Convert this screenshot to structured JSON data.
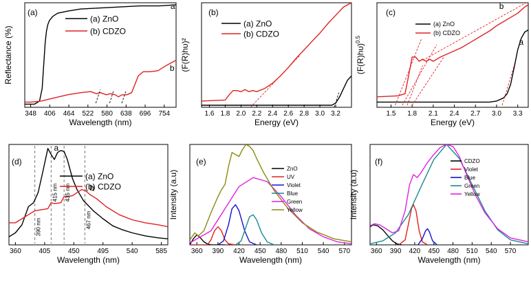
{
  "chart_data": [
    {
      "panel": "(a)",
      "type": "line",
      "xlabel": "Wavelength (nm)",
      "ylabel": "Reflectance (%)",
      "xlim": [
        330,
        790
      ],
      "ylim": [
        0,
        100
      ],
      "xticks": [
        "348",
        "406",
        "464",
        "522",
        "580",
        "638",
        "696",
        "754"
      ],
      "xtick_values": [
        348,
        406,
        464,
        522,
        580,
        638,
        696,
        754
      ],
      "legend": [
        {
          "label": "(a) ZnO",
          "color": "#000000"
        },
        {
          "label": "(b) CDZO",
          "color": "#e02020"
        }
      ],
      "series": [
        {
          "name": "(a) ZnO",
          "color": "#000000",
          "x": [
            330,
            360,
            375,
            383,
            388,
            392,
            396,
            400,
            405,
            415,
            430,
            460,
            500,
            560,
            620,
            680,
            740,
            790
          ],
          "y": [
            3,
            3,
            6,
            18,
            42,
            62,
            73,
            79,
            83,
            87,
            90,
            92,
            94,
            95,
            96,
            97,
            97,
            98
          ]
        },
        {
          "name": "(b) CDZO",
          "color": "#e02020",
          "x": [
            330,
            348,
            380,
            420,
            460,
            500,
            530,
            548,
            560,
            578,
            590,
            605,
            615,
            625,
            640,
            655,
            665,
            675,
            690,
            710,
            735,
            760,
            778,
            790
          ],
          "y": [
            5,
            5,
            6,
            9,
            12,
            14,
            15,
            13,
            14,
            12,
            13,
            12,
            10,
            12,
            12,
            14,
            22,
            30,
            34,
            34,
            35,
            40,
            43,
            45
          ]
        }
      ],
      "curve_labels": [
        {
          "text": "a",
          "x": 780,
          "y": 94
        },
        {
          "text": "b",
          "x": 778,
          "y": 35
        }
      ],
      "dashed_lines": [
        [
          [
            546,
            4
          ],
          [
            560,
            17
          ]
        ],
        [
          [
            588,
            4
          ],
          [
            600,
            16
          ]
        ],
        [
          [
            625,
            4
          ],
          [
            638,
            16
          ]
        ]
      ]
    },
    {
      "panel": "(b)",
      "type": "line",
      "xlabel": "Energy (eV)",
      "ylabel": "(F(R)hυ)²",
      "xlim": [
        1.5,
        3.4
      ],
      "ylim": [
        0,
        100
      ],
      "xticks": [
        "1.6",
        "1.8",
        "2.0",
        "2.2",
        "2.4",
        "2.6",
        "2.8",
        "3.0",
        "3.2"
      ],
      "xtick_values": [
        1.6,
        1.8,
        2.0,
        2.2,
        2.4,
        2.6,
        2.8,
        3.0,
        3.2
      ],
      "legend": [
        {
          "label": "(a) ZnO",
          "color": "#000000"
        },
        {
          "label": "(b) CDZO",
          "color": "#e02020"
        }
      ],
      "series": [
        {
          "name": "(a) ZnO",
          "color": "#000000",
          "x": [
            1.5,
            3.0,
            3.15,
            3.2,
            3.25,
            3.3,
            3.35,
            3.4
          ],
          "y": [
            2,
            2,
            2,
            4,
            10,
            18,
            26,
            30
          ]
        },
        {
          "name": "(b) CDZO",
          "color": "#e02020",
          "x": [
            1.5,
            1.8,
            1.85,
            1.9,
            1.95,
            2.0,
            2.05,
            2.1,
            2.15,
            2.2,
            2.3,
            2.4,
            2.5,
            2.6,
            2.7,
            2.8,
            2.9,
            3.0,
            3.1,
            3.2,
            3.3,
            3.4
          ],
          "y": [
            6,
            7,
            12,
            16,
            16,
            15,
            17,
            15,
            16,
            15,
            18,
            23,
            30,
            38,
            47,
            55,
            63,
            71,
            80,
            88,
            96,
            100
          ]
        }
      ],
      "dashed_lines": [
        [
          [
            2.12,
            0
          ],
          [
            2.75,
            50
          ]
        ],
        [
          [
            3.18,
            0
          ],
          [
            3.24,
            14
          ]
        ]
      ]
    },
    {
      "panel": "(c)",
      "type": "line",
      "xlabel": "Energy (eV)",
      "ylabel": "(F(R)hυ)^0.5",
      "xlim": [
        1.3,
        3.45
      ],
      "ylim": [
        0,
        100
      ],
      "xticks": [
        "1.5",
        "1.8",
        "2.1",
        "2.4",
        "2.7",
        "3.0",
        "3.3"
      ],
      "xtick_values": [
        1.5,
        1.8,
        2.1,
        2.4,
        2.7,
        3.0,
        3.3
      ],
      "legend": [
        {
          "label": "(a) ZnO",
          "color": "#000000"
        },
        {
          "label": "(b) CDZO",
          "color": "#e02020"
        }
      ],
      "series": [
        {
          "name": "(a) ZnO",
          "color": "#000000",
          "x": [
            1.3,
            2.9,
            3.0,
            3.1,
            3.15,
            3.2,
            3.25,
            3.3,
            3.35,
            3.4,
            3.45
          ],
          "y": [
            5,
            5,
            6,
            9,
            13,
            22,
            38,
            55,
            66,
            72,
            74
          ]
        },
        {
          "name": "(b) CDZO",
          "color": "#e02020",
          "x": [
            1.3,
            1.6,
            1.7,
            1.75,
            1.8,
            1.85,
            1.9,
            1.95,
            2.0,
            2.05,
            2.1,
            2.2,
            2.3,
            2.4,
            2.5,
            2.6,
            2.7,
            2.8,
            2.9,
            3.0,
            3.1,
            3.2,
            3.3,
            3.4,
            3.45
          ],
          "y": [
            10,
            11,
            13,
            30,
            48,
            48,
            44,
            46,
            44,
            46,
            44,
            48,
            51,
            54,
            57,
            61,
            65,
            69,
            73,
            78,
            82,
            86,
            90,
            96,
            98
          ]
        }
      ],
      "curve_labels": [
        {
          "text": "a",
          "x": 3.35,
          "y": 60
        },
        {
          "text": "b",
          "x": 3.07,
          "y": 94
        }
      ],
      "dashed_lines": [
        [
          [
            1.56,
            2
          ],
          [
            1.93,
            65
          ]
        ],
        [
          [
            1.66,
            2
          ],
          [
            2.15,
            60
          ]
        ],
        [
          [
            1.8,
            2
          ],
          [
            2.25,
            48
          ]
        ],
        [
          [
            1.73,
            2
          ],
          [
            1.95,
            40
          ]
        ],
        [
          [
            1.95,
            45
          ],
          [
            3.42,
            100
          ]
        ],
        [
          [
            3.08,
            2
          ],
          [
            3.25,
            40
          ]
        ]
      ]
    },
    {
      "panel": "(d)",
      "type": "line",
      "xlabel": "Wavelength (nm)",
      "ylabel": "Intensity (a.u)",
      "xlim": [
        350,
        595
      ],
      "ylim": [
        0,
        100
      ],
      "xticks": [
        "360",
        "405",
        "450",
        "495",
        "540",
        "585"
      ],
      "xtick_values": [
        360,
        405,
        450,
        495,
        540,
        585
      ],
      "legend": [
        {
          "label": "(a) ZnO",
          "color": "#000000"
        },
        {
          "label": "(b) CDZO",
          "color": "#e02020"
        }
      ],
      "series": [
        {
          "name": "(a) ZnO",
          "color": "#000000",
          "x": [
            350,
            360,
            370,
            380,
            388,
            395,
            402,
            410,
            415,
            420,
            425,
            430,
            435,
            440,
            448,
            455,
            465,
            480,
            495,
            510,
            525,
            540,
            560,
            580,
            595
          ],
          "y": [
            8,
            12,
            20,
            38,
            42,
            52,
            72,
            96,
            90,
            85,
            92,
            94,
            93,
            85,
            66,
            55,
            44,
            34,
            26,
            19,
            15,
            12,
            9,
            7,
            6
          ]
        },
        {
          "name": "(b) CDZO",
          "color": "#e02020",
          "x": [
            350,
            360,
            370,
            380,
            390,
            400,
            410,
            415,
            420,
            430,
            435,
            440,
            448,
            455,
            462,
            468,
            475,
            485,
            500,
            520,
            540,
            560,
            580,
            595
          ],
          "y": [
            22,
            22,
            26,
            30,
            34,
            35,
            36,
            42,
            41,
            42,
            48,
            48,
            49,
            52,
            55,
            54,
            50,
            46,
            38,
            30,
            25,
            22,
            20,
            18
          ]
        }
      ],
      "curve_labels": [
        {
          "text": "a",
          "x": 423,
          "y": 94
        },
        {
          "text": "b",
          "x": 478,
          "y": 54
        }
      ],
      "vertical_markers": [
        {
          "x": 390,
          "label": "390 nm"
        },
        {
          "x": 415,
          "label": "415 nm"
        },
        {
          "x": 435,
          "label": "435 nm"
        },
        {
          "x": 467,
          "label": "467 nm"
        }
      ]
    },
    {
      "panel": "(e)",
      "type": "line",
      "xlabel": "Wavelength (nm)",
      "ylabel": "Intensity (a.u)",
      "xlim": [
        350,
        580
      ],
      "ylim": [
        0,
        100
      ],
      "xticks": [
        "360",
        "390",
        "420",
        "450",
        "480",
        "510",
        "540",
        "570"
      ],
      "xtick_values": [
        360,
        390,
        420,
        450,
        480,
        510,
        540,
        570
      ],
      "legend": [
        {
          "label": "ZnO",
          "color": "#000000"
        },
        {
          "label": "UV",
          "color": "#e02020"
        },
        {
          "label": "Violet",
          "color": "#1010d0"
        },
        {
          "label": "Blue",
          "color": "#198a8e"
        },
        {
          "label": "Green",
          "color": "#e020e0"
        },
        {
          "label": "Yellow",
          "color": "#8a8a10"
        }
      ],
      "series": [
        {
          "name": "ZnO",
          "color": "#000000",
          "x": [
            350,
            355,
            360,
            365,
            370,
            375,
            380,
            390,
            400
          ],
          "y": [
            0,
            6,
            10,
            7,
            3,
            1,
            0,
            0,
            0
          ]
        },
        {
          "name": "UV",
          "color": "#e02020",
          "x": [
            350,
            375,
            380,
            385,
            390,
            395,
            400,
            405,
            415
          ],
          "y": [
            0,
            0,
            5,
            14,
            18,
            14,
            5,
            1,
            0
          ]
        },
        {
          "name": "Violet",
          "color": "#1010d0",
          "x": [
            390,
            398,
            405,
            410,
            415,
            420,
            428,
            435,
            445
          ],
          "y": [
            0,
            4,
            20,
            36,
            40,
            34,
            14,
            3,
            0
          ]
        },
        {
          "name": "Blue",
          "color": "#198a8e",
          "x": [
            415,
            423,
            430,
            435,
            440,
            445,
            452,
            460,
            470
          ],
          "y": [
            0,
            4,
            18,
            28,
            30,
            25,
            12,
            3,
            0
          ]
        },
        {
          "name": "Green",
          "color": "#e020e0",
          "x": [
            350,
            380,
            400,
            420,
            440,
            460,
            480,
            500,
            520,
            540,
            560,
            580
          ],
          "y": [
            2,
            14,
            36,
            58,
            67,
            63,
            48,
            30,
            16,
            8,
            3,
            1
          ]
        },
        {
          "name": "Yellow",
          "color": "#8a8a10",
          "x": [
            350,
            357,
            362,
            370,
            380,
            390,
            395,
            400,
            405,
            410,
            415,
            420,
            425,
            430,
            435,
            440,
            445,
            455,
            470,
            490,
            510,
            530,
            555,
            580
          ],
          "y": [
            5,
            12,
            9,
            14,
            32,
            48,
            55,
            60,
            78,
            92,
            90,
            88,
            95,
            100,
            98,
            94,
            86,
            72,
            54,
            36,
            22,
            13,
            6,
            3
          ]
        }
      ]
    },
    {
      "panel": "(f)",
      "type": "line",
      "xlabel": "Wavelength (nm)",
      "ylabel": "Intensity (a.u)",
      "xlim": [
        350,
        598
      ],
      "ylim": [
        0,
        100
      ],
      "xticks": [
        "360",
        "390",
        "420",
        "450",
        "480",
        "510",
        "540",
        "570"
      ],
      "xtick_values": [
        360,
        390,
        420,
        450,
        480,
        510,
        540,
        570
      ],
      "legend": [
        {
          "label": "CDZO",
          "color": "#000000"
        },
        {
          "label": "Violet",
          "color": "#e02020"
        },
        {
          "label": "Blue",
          "color": "#1010d0"
        },
        {
          "label": "Green",
          "color": "#198a8e"
        },
        {
          "label": "Yellow",
          "color": "#e020e0"
        }
      ],
      "series": [
        {
          "name": "CDZO",
          "color": "#000000",
          "x": [
            350,
            355,
            362,
            370,
            378,
            385,
            392,
            400
          ],
          "y": [
            18,
            20,
            19,
            15,
            9,
            4,
            1,
            0
          ]
        },
        {
          "name": "Violet",
          "color": "#e02020",
          "x": [
            395,
            405,
            410,
            415,
            418,
            422,
            427,
            432,
            440
          ],
          "y": [
            0,
            5,
            20,
            36,
            40,
            34,
            14,
            3,
            0
          ]
        },
        {
          "name": "Blue",
          "color": "#1010d0",
          "x": [
            425,
            432,
            437,
            440,
            443,
            448,
            455
          ],
          "y": [
            0,
            6,
            14,
            16,
            13,
            4,
            0
          ]
        },
        {
          "name": "Green",
          "color": "#198a8e",
          "x": [
            350,
            370,
            390,
            410,
            430,
            450,
            470,
            490,
            510,
            530,
            550,
            570,
            598
          ],
          "y": [
            1,
            4,
            12,
            30,
            58,
            85,
            100,
            86,
            60,
            34,
            15,
            5,
            1
          ]
        },
        {
          "name": "Yellow",
          "color": "#e020e0",
          "x": [
            350,
            357,
            365,
            375,
            385,
            395,
            405,
            412,
            418,
            424,
            430,
            440,
            450,
            460,
            470,
            480,
            490,
            500,
            515,
            530,
            550,
            570,
            598
          ],
          "y": [
            19,
            21,
            20,
            16,
            12,
            14,
            34,
            60,
            70,
            67,
            72,
            82,
            90,
            97,
            100,
            98,
            88,
            72,
            50,
            32,
            16,
            7,
            3
          ]
        }
      ]
    }
  ]
}
